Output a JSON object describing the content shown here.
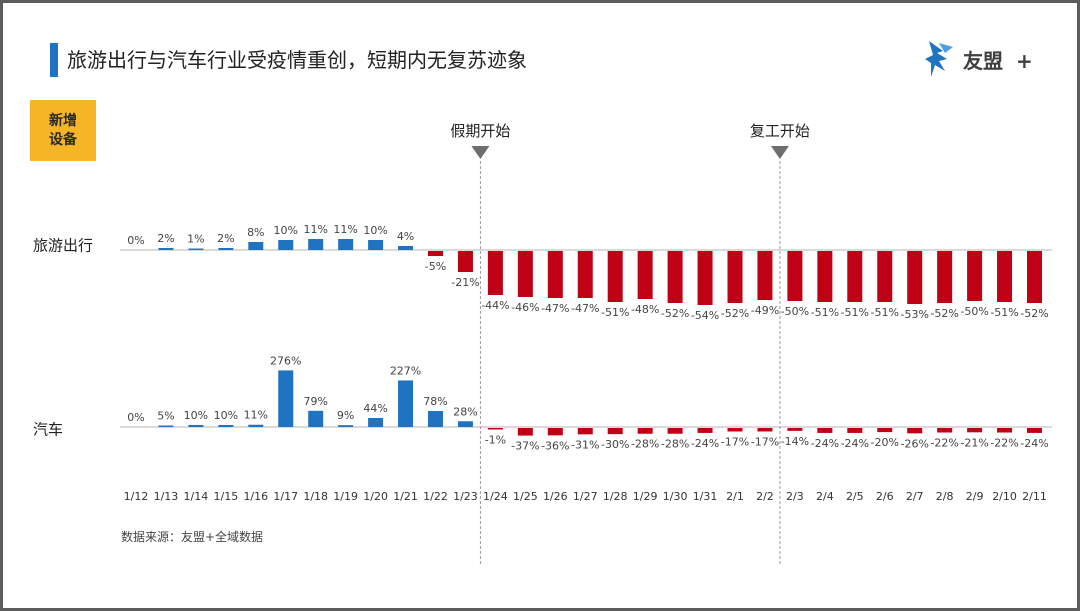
{
  "title": "旅游出行与汽车行业受疫情重创，短期内无复苏迹象",
  "logo": {
    "text": "友盟",
    "plus": "+"
  },
  "badge": {
    "line1": "新增",
    "line2": "设备"
  },
  "source": "数据来源：友盟+全域数据",
  "colors": {
    "positive": "#1f73c1",
    "negative": "#c00015",
    "accent": "#1f73c1",
    "badge": "#f6b427"
  },
  "chart_data": {
    "type": "bar",
    "categories": [
      "1/12",
      "1/13",
      "1/14",
      "1/15",
      "1/16",
      "1/17",
      "1/18",
      "1/19",
      "1/20",
      "1/21",
      "1/22",
      "1/23",
      "1/24",
      "1/25",
      "1/26",
      "1/27",
      "1/28",
      "1/29",
      "1/30",
      "1/31",
      "2/1",
      "2/2",
      "2/3",
      "2/4",
      "2/5",
      "2/6",
      "2/7",
      "2/8",
      "2/9",
      "2/10",
      "2/11"
    ],
    "series": [
      {
        "name": "旅游出行",
        "values": [
          0,
          2,
          1,
          2,
          8,
          10,
          11,
          11,
          10,
          4,
          -5,
          -21,
          -44,
          -46,
          -47,
          -47,
          -51,
          -48,
          -52,
          -54,
          -52,
          -49,
          -50,
          -51,
          -51,
          -51,
          -53,
          -52,
          -50,
          -51,
          -52
        ],
        "labels": [
          "0%",
          "2%",
          "1%",
          "2%",
          "8%",
          "10%",
          "11%",
          "11%",
          "10%",
          "4%",
          "-5%",
          "-21%",
          "-44%",
          "-46%",
          "-47%",
          "-47%",
          "-51%",
          "-48%",
          "-52%",
          "-54%",
          "-52%",
          "-49%",
          "-50%",
          "-51%",
          "-51%",
          "-51%",
          "-53%",
          "-52%",
          "-50%",
          "-51%",
          "-52%"
        ]
      },
      {
        "name": "汽车",
        "values": [
          0,
          5,
          10,
          10,
          11,
          276,
          79,
          9,
          44,
          227,
          78,
          28,
          -1,
          -37,
          -36,
          -31,
          -30,
          -28,
          -28,
          -24,
          -17,
          -17,
          -14,
          -24,
          -24,
          -20,
          -26,
          -22,
          -21,
          -22,
          -24
        ],
        "labels": [
          "0%",
          "5%",
          "10%",
          "10%",
          "11%",
          "276%",
          "79%",
          "9%",
          "44%",
          "227%",
          "78%",
          "28%",
          "-1%",
          "-37%",
          "-36%",
          "-31%",
          "-30%",
          "-28%",
          "-28%",
          "-24%",
          "-17%",
          "-17%",
          "-14%",
          "-24%",
          "-24%",
          "-20%",
          "-26%",
          "-22%",
          "-21%",
          "-22%",
          "-24%"
        ]
      }
    ],
    "annotations": [
      {
        "label": "假期开始",
        "after_category": "1/23"
      },
      {
        "label": "复工开始",
        "after_category": "2/2"
      }
    ]
  }
}
